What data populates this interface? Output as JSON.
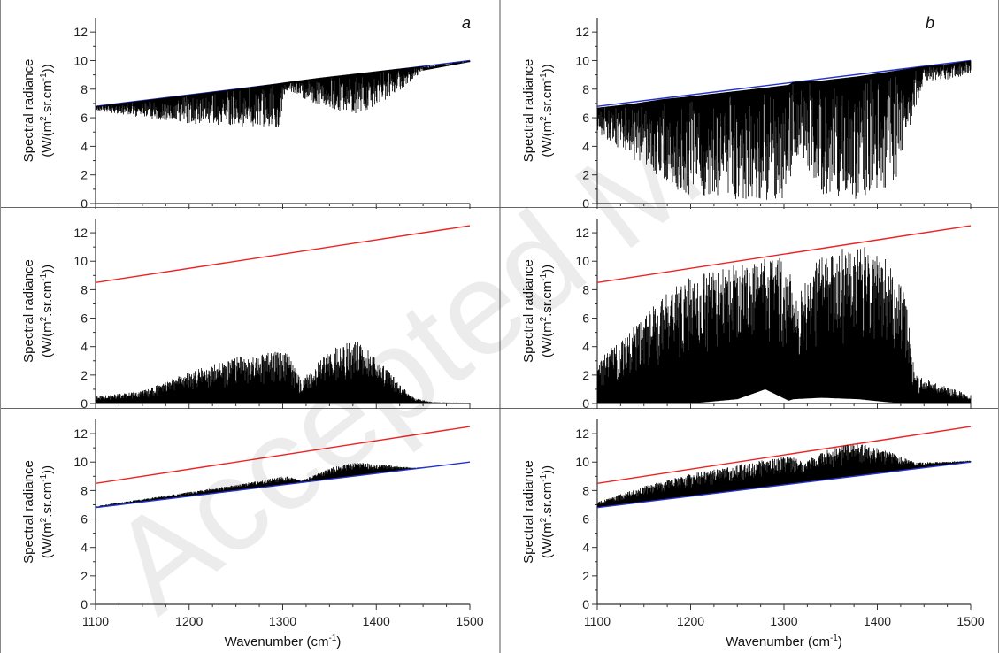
{
  "figure": {
    "watermark": "Accepted M",
    "column_labels": [
      "a",
      "b"
    ]
  },
  "axis_text": {
    "ylabel_line1": "Spectral radiance",
    "ylabel_line2_prefix": "(W/(m",
    "ylabel_line2_sup1": "2",
    "ylabel_line2_mid": ".sr.cm",
    "ylabel_line2_sup2": "-1",
    "ylabel_line2_suffix": "))",
    "xlabel_prefix": "Wavenumber (cm",
    "xlabel_sup": "-1",
    "xlabel_suffix": ")"
  },
  "colors": {
    "blue": "#2233cc",
    "red": "#ee2222",
    "spectrum": "#000000"
  },
  "chart_data": [
    {
      "type": "line",
      "panel": "a-top",
      "column": "a",
      "row": 0,
      "xlim": [
        1100,
        1500
      ],
      "ylim": [
        0,
        13
      ],
      "xticks": [
        1100,
        1200,
        1300,
        1400,
        1500
      ],
      "yticks": [
        0,
        2,
        4,
        6,
        8,
        10,
        12
      ],
      "show_xtick_labels": false,
      "series": [
        {
          "kind": "straight",
          "color": "blue",
          "x": [
            1100,
            1500
          ],
          "y": [
            6.8,
            10.0
          ]
        },
        {
          "kind": "spectrum",
          "color": "spectrum",
          "ref": [
            6.8,
            10.0
          ],
          "x": [
            1100,
            1150,
            1200,
            1250,
            1295,
            1305,
            1340,
            1380,
            1420,
            1450,
            1500
          ],
          "upper": [
            6.8,
            7.2,
            7.6,
            8.0,
            8.4,
            8.5,
            8.8,
            9.1,
            9.4,
            9.6,
            10.0
          ],
          "lower": [
            6.5,
            6.0,
            5.6,
            5.4,
            5.3,
            7.9,
            6.8,
            6.2,
            7.6,
            9.3,
            9.9
          ]
        }
      ]
    },
    {
      "type": "line",
      "panel": "b-top",
      "column": "b",
      "row": 0,
      "xlim": [
        1100,
        1500
      ],
      "ylim": [
        0,
        13
      ],
      "xticks": [
        1100,
        1200,
        1300,
        1400,
        1500
      ],
      "yticks": [
        0,
        2,
        4,
        6,
        8,
        10,
        12
      ],
      "show_xtick_labels": false,
      "series": [
        {
          "kind": "straight",
          "color": "blue",
          "x": [
            1100,
            1500
          ],
          "y": [
            6.8,
            10.0
          ]
        },
        {
          "kind": "spectrum",
          "color": "spectrum",
          "ref": [
            6.8,
            10.0
          ],
          "x": [
            1100,
            1140,
            1170,
            1200,
            1240,
            1280,
            1305,
            1310,
            1340,
            1380,
            1420,
            1450,
            1470,
            1500
          ],
          "upper": [
            6.7,
            7.0,
            7.3,
            7.5,
            7.8,
            8.1,
            8.3,
            8.5,
            8.6,
            8.9,
            9.3,
            9.6,
            9.7,
            10.0
          ],
          "lower": [
            5.0,
            3.0,
            1.5,
            0.5,
            0.2,
            0.2,
            0.3,
            3.5,
            0.5,
            0.2,
            1.5,
            8.6,
            8.6,
            9.0
          ]
        }
      ]
    },
    {
      "type": "line",
      "panel": "a-middle",
      "column": "a",
      "row": 1,
      "xlim": [
        1100,
        1500
      ],
      "ylim": [
        0,
        13
      ],
      "xticks": [
        1100,
        1200,
        1300,
        1400,
        1500
      ],
      "yticks": [
        0,
        2,
        4,
        6,
        8,
        10,
        12
      ],
      "show_xtick_labels": false,
      "series": [
        {
          "kind": "straight",
          "color": "red",
          "x": [
            1100,
            1500
          ],
          "y": [
            8.5,
            12.5
          ]
        },
        {
          "kind": "spectrum",
          "color": "spectrum",
          "ref": [
            0,
            0
          ],
          "x": [
            1100,
            1150,
            1200,
            1250,
            1300,
            1305,
            1320,
            1350,
            1380,
            1410,
            1440,
            1460,
            1500
          ],
          "upper": [
            0.5,
            0.9,
            2.2,
            3.3,
            3.7,
            3.6,
            1.6,
            3.8,
            4.5,
            2.5,
            0.4,
            0.1,
            0.05
          ],
          "lower": [
            0,
            0,
            0,
            0,
            0,
            0,
            0,
            0,
            0,
            0,
            0,
            0,
            0
          ]
        }
      ]
    },
    {
      "type": "line",
      "panel": "b-middle",
      "column": "b",
      "row": 1,
      "xlim": [
        1100,
        1500
      ],
      "ylim": [
        0,
        13
      ],
      "xticks": [
        1100,
        1200,
        1300,
        1400,
        1500
      ],
      "yticks": [
        0,
        2,
        4,
        6,
        8,
        10,
        12
      ],
      "show_xtick_labels": false,
      "series": [
        {
          "kind": "straight",
          "color": "red",
          "x": [
            1100,
            1500
          ],
          "y": [
            8.5,
            12.5
          ]
        },
        {
          "kind": "spectrum",
          "color": "spectrum",
          "ref": [
            0,
            0
          ],
          "x": [
            1100,
            1140,
            1170,
            1200,
            1250,
            1280,
            1305,
            1310,
            1340,
            1380,
            1410,
            1430,
            1440,
            1460,
            1500
          ],
          "upper": [
            3.0,
            5.5,
            7.5,
            9.0,
            9.8,
            10.2,
            10.4,
            7.0,
            10.6,
            11.2,
            10.2,
            8.0,
            2.0,
            1.5,
            0.6
          ],
          "lower": [
            0,
            0,
            0,
            0,
            0.3,
            1.0,
            0.2,
            0.3,
            0.4,
            0.3,
            0.1,
            0,
            0,
            0,
            0
          ]
        }
      ]
    },
    {
      "type": "line",
      "panel": "a-bottom",
      "column": "a",
      "row": 2,
      "xlim": [
        1100,
        1500
      ],
      "ylim": [
        0,
        13
      ],
      "xticks": [
        1100,
        1200,
        1300,
        1400,
        1500
      ],
      "yticks": [
        0,
        2,
        4,
        6,
        8,
        10,
        12
      ],
      "show_xtick_labels": true,
      "series": [
        {
          "kind": "straight",
          "color": "red",
          "x": [
            1100,
            1500
          ],
          "y": [
            8.5,
            12.5
          ]
        },
        {
          "kind": "spectrum",
          "color": "spectrum",
          "ref": [
            6.8,
            10.0
          ],
          "x": [
            1100,
            1150,
            1200,
            1250,
            1300,
            1305,
            1320,
            1350,
            1380,
            1410,
            1440,
            1460,
            1500
          ],
          "upper": [
            6.9,
            7.4,
            7.9,
            8.4,
            9.0,
            9.0,
            8.7,
            9.6,
            10.0,
            9.8,
            9.6,
            9.7,
            10.0
          ],
          "lower": [
            6.8,
            7.2,
            7.6,
            8.0,
            8.4,
            8.44,
            8.56,
            8.8,
            9.04,
            9.28,
            9.52,
            9.68,
            10.0
          ]
        },
        {
          "kind": "straight",
          "color": "blue",
          "x": [
            1100,
            1500
          ],
          "y": [
            6.8,
            10.0
          ]
        }
      ]
    },
    {
      "type": "line",
      "panel": "b-bottom",
      "column": "b",
      "row": 2,
      "xlim": [
        1100,
        1500
      ],
      "ylim": [
        0,
        13
      ],
      "xticks": [
        1100,
        1200,
        1300,
        1400,
        1500
      ],
      "yticks": [
        0,
        2,
        4,
        6,
        8,
        10,
        12
      ],
      "show_xtick_labels": true,
      "series": [
        {
          "kind": "straight",
          "color": "red",
          "x": [
            1100,
            1500
          ],
          "y": [
            8.5,
            12.5
          ]
        },
        {
          "kind": "spectrum",
          "color": "spectrum",
          "ref": [
            6.8,
            10.0
          ],
          "x": [
            1100,
            1150,
            1200,
            1250,
            1300,
            1305,
            1320,
            1350,
            1380,
            1410,
            1440,
            1460,
            1500
          ],
          "upper": [
            7.2,
            8.3,
            9.2,
            9.8,
            10.4,
            10.5,
            10.0,
            11.0,
            11.4,
            10.8,
            10.0,
            10.0,
            10.1
          ],
          "lower": [
            6.8,
            7.2,
            7.6,
            8.0,
            8.4,
            8.44,
            8.56,
            8.8,
            9.04,
            9.28,
            9.52,
            9.68,
            10.0
          ]
        },
        {
          "kind": "straight",
          "color": "blue",
          "x": [
            1100,
            1500
          ],
          "y": [
            6.8,
            10.0
          ]
        }
      ]
    }
  ]
}
